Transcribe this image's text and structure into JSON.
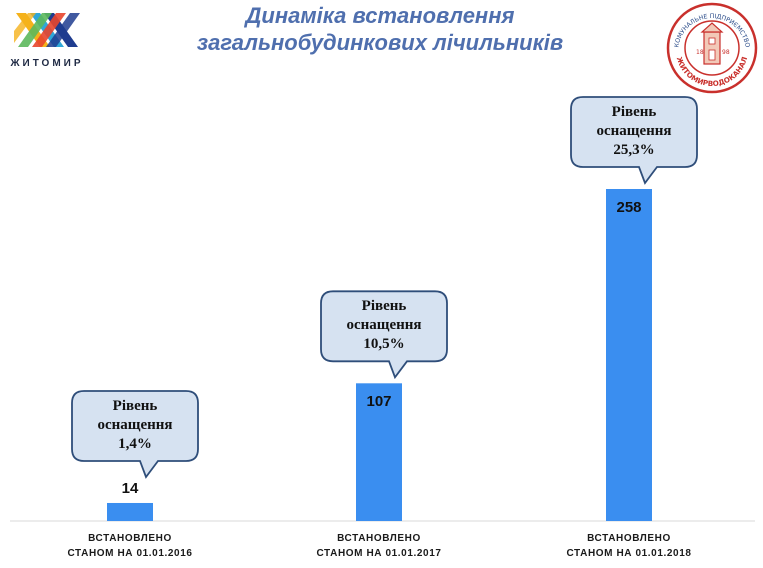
{
  "header": {
    "title_line1": "Динаміка встановлення",
    "title_line2": "загальнобудинкових лічильників",
    "left_logo_text": "ЖИТОМИР",
    "right_logo_text_top": "КОМУНАЛЬНЕ ПІДПРИЄМСТВО",
    "right_logo_text_bottom": "ЖИТОМИРВОДОКАНАЛ",
    "right_logo_year_left": "18",
    "right_logo_year_right": "98"
  },
  "colors": {
    "bar": "#3a8ef0",
    "title": "#4f6fae",
    "callout_fill": "#d6e2f1",
    "callout_stroke": "#2f4e7a"
  },
  "chart_data": {
    "type": "bar",
    "categories": [
      [
        "ВСТАНОВЛЕНО",
        "СТАНОМ НА 01.01.2016"
      ],
      [
        "ВСТАНОВЛЕНО",
        "СТАНОМ НА 01.01.2017"
      ],
      [
        "ВСТАНОВЛЕНО",
        "СТАНОМ НА 01.01.2018"
      ]
    ],
    "values": [
      14,
      107,
      258
    ],
    "data_labels": [
      "14",
      "107",
      "258"
    ],
    "annotations": [
      [
        "Рівень",
        "оснащення",
        "1,4%"
      ],
      [
        "Рівень",
        "оснащення",
        "10,5%"
      ],
      [
        "Рівень",
        "оснащення",
        "25,3%"
      ]
    ],
    "title": "",
    "xlabel": "",
    "ylabel": "",
    "ylim": [
      0,
      258
    ],
    "grid": false,
    "legend": "none"
  }
}
